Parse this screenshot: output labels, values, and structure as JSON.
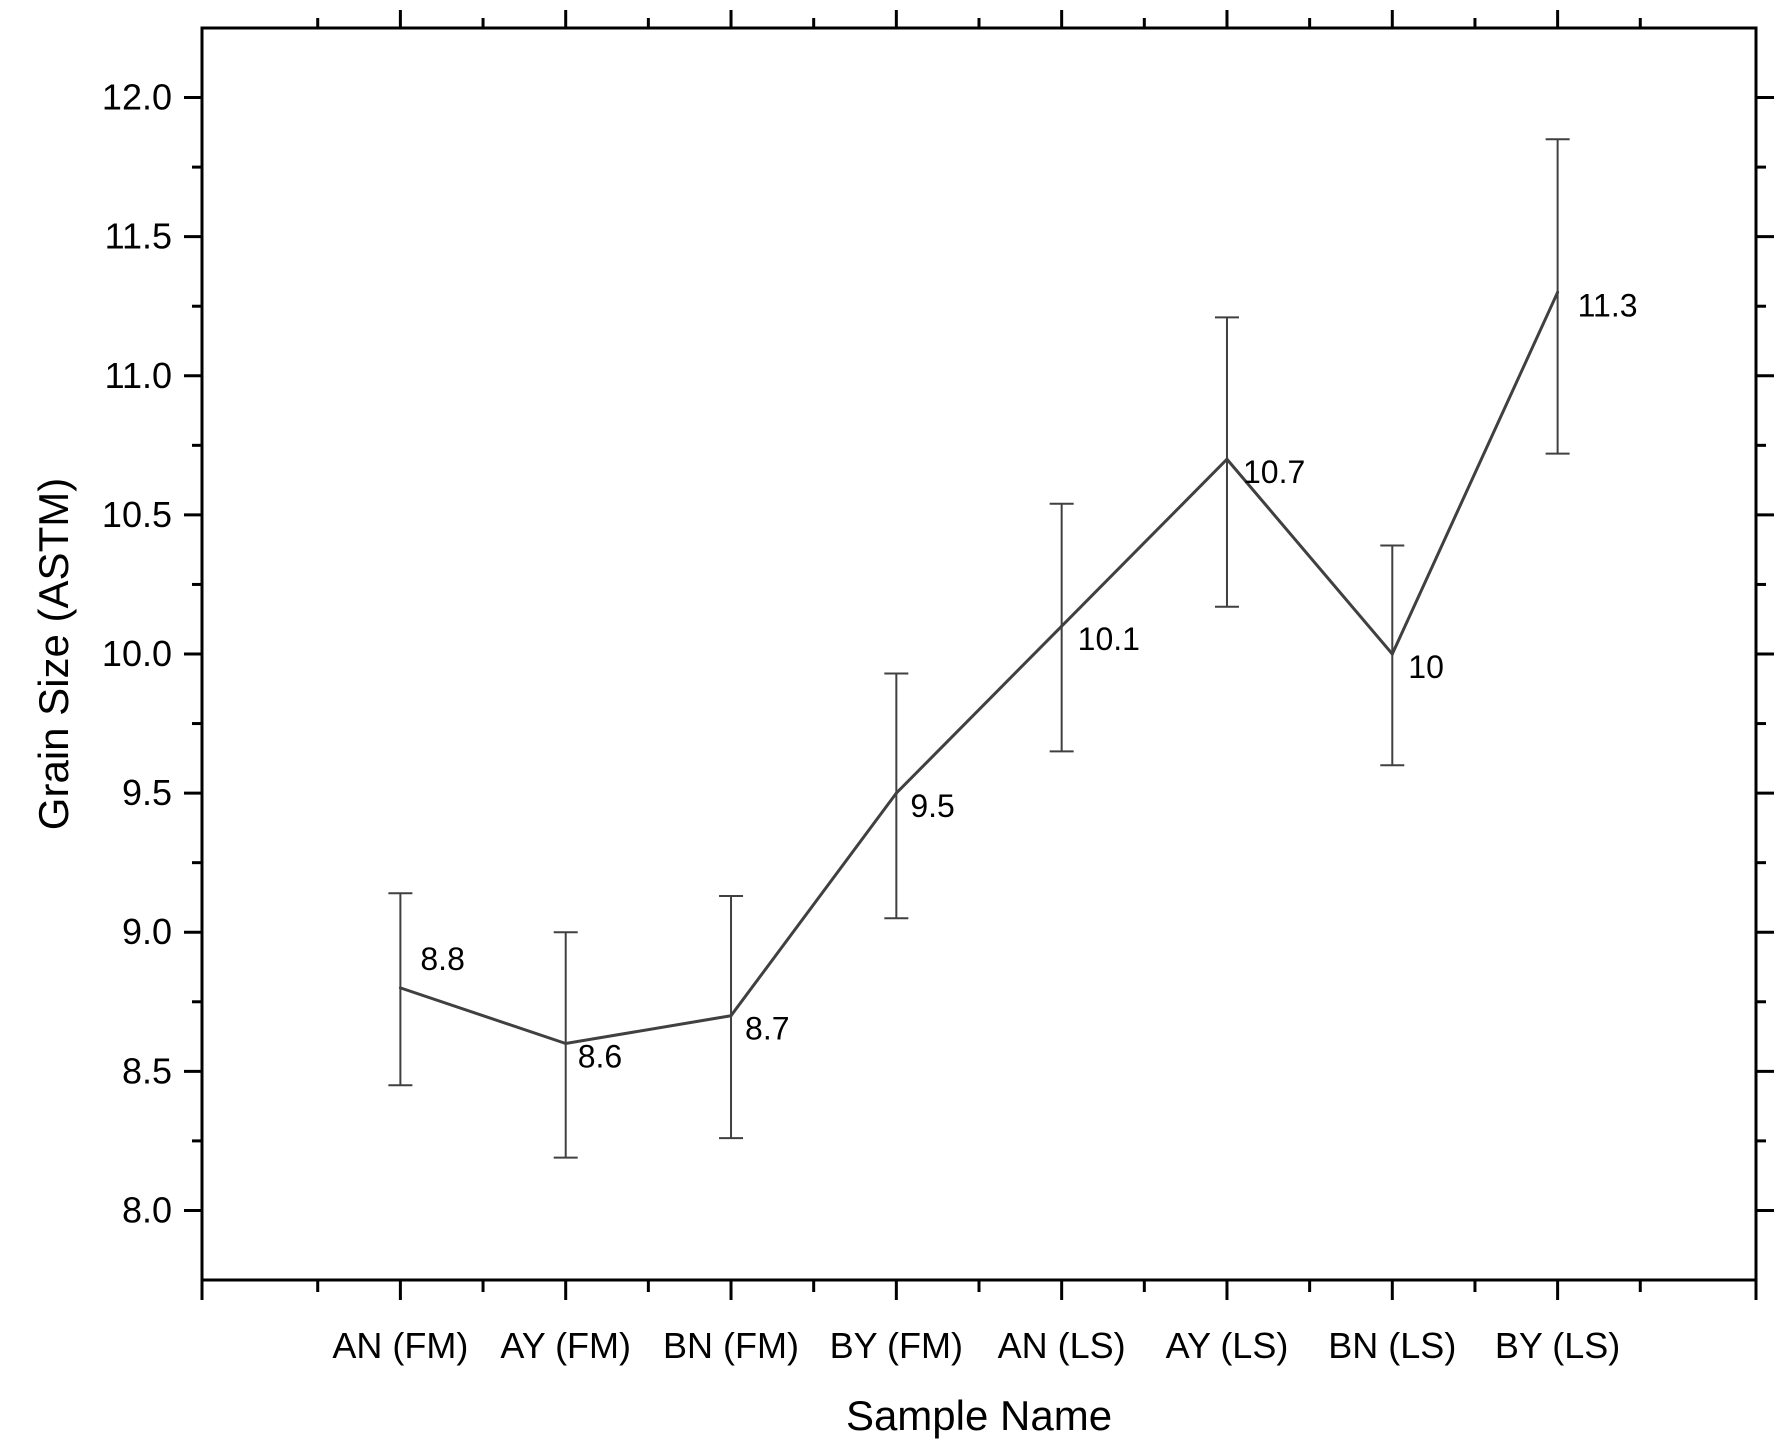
{
  "chart_data": {
    "type": "line",
    "title": "",
    "xlabel": "Sample Name",
    "ylabel": "Grain Size (ASTM)",
    "categories": [
      "AN (FM)",
      "AY (FM)",
      "BN (FM)",
      "BY (FM)",
      "AN (LS)",
      "AY (LS)",
      "BN (LS)",
      "BY (LS)"
    ],
    "values": [
      8.8,
      8.6,
      8.7,
      9.5,
      10.1,
      10.7,
      10.0,
      11.3
    ],
    "error_lower": [
      8.45,
      8.19,
      8.26,
      9.05,
      9.65,
      10.17,
      9.6,
      10.72
    ],
    "error_upper": [
      9.14,
      9.0,
      9.13,
      9.93,
      10.54,
      11.21,
      10.39,
      11.85
    ],
    "data_labels": [
      "8.8",
      "8.6",
      "8.7",
      "9.5",
      "10.1",
      "10.7",
      "10",
      "11.3"
    ],
    "ylim": [
      7.75,
      12.25
    ],
    "yticks": [
      8.0,
      8.5,
      9.0,
      9.5,
      10.0,
      10.5,
      11.0,
      11.5,
      12.0
    ],
    "ytick_labels": [
      "8.0",
      "8.5",
      "9.0",
      "9.5",
      "10.0",
      "10.5",
      "11.0",
      "11.5",
      "12.0"
    ],
    "grid": false,
    "legend": "none",
    "line_color": "#404040",
    "axis_color": "#000000"
  }
}
